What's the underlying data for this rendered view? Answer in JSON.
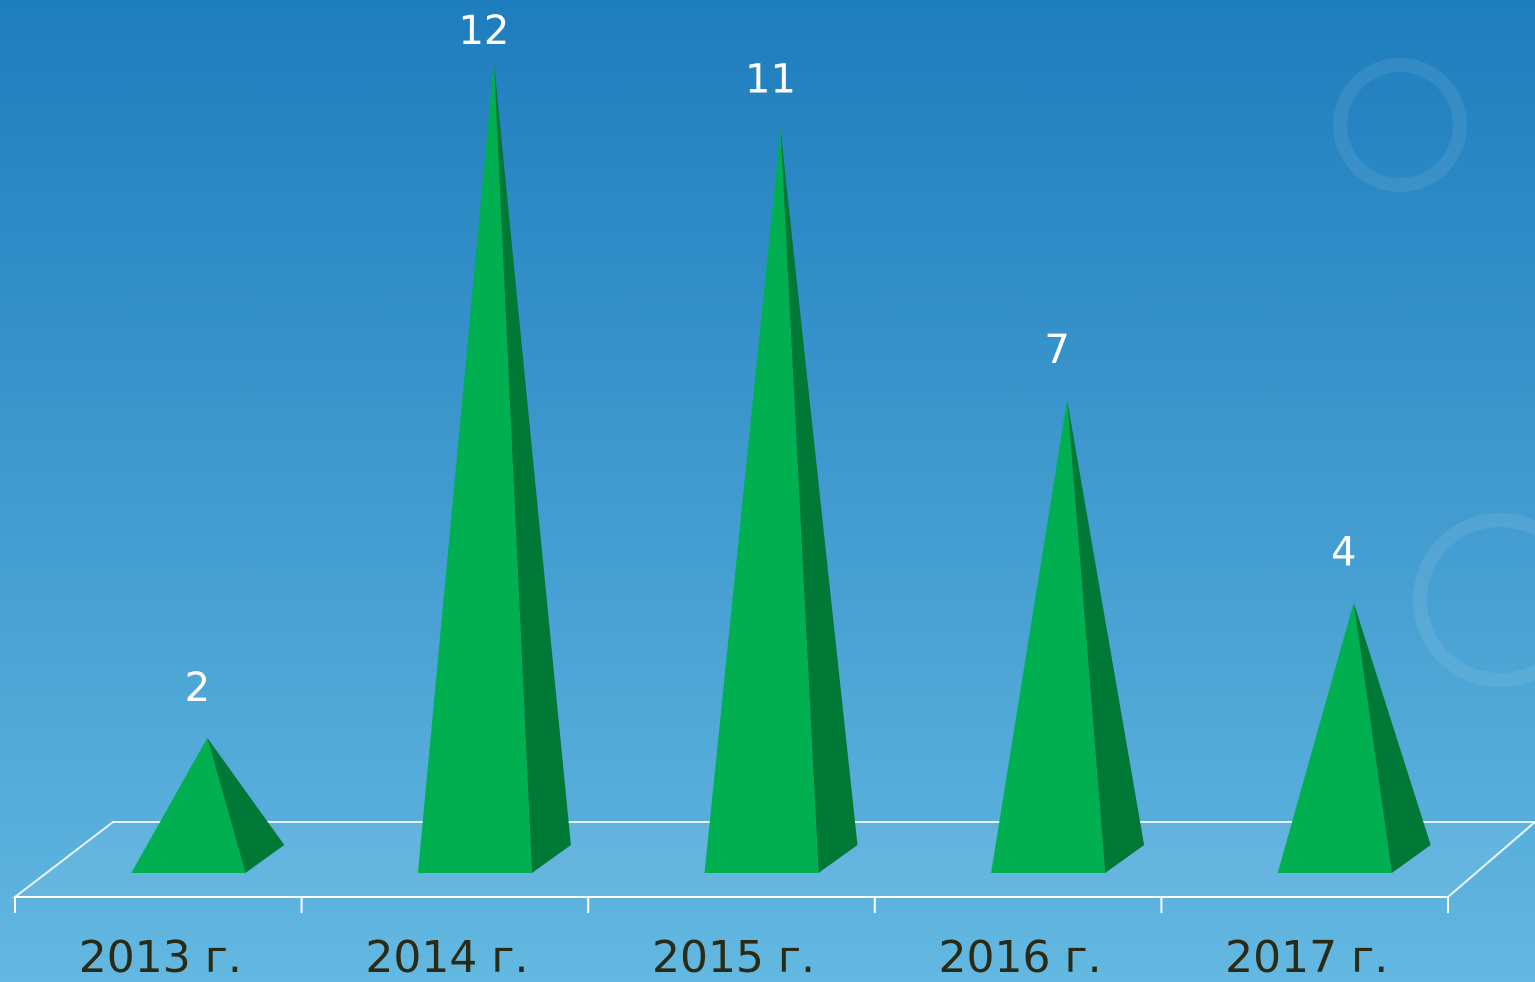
{
  "chart_data": {
    "type": "pyramid",
    "categories": [
      "2013 г.",
      "2014 г.",
      "2015 г.",
      "2016 г.",
      "2017 г."
    ],
    "values": [
      2,
      12,
      11,
      7,
      4
    ],
    "color": "#00b050"
  }
}
